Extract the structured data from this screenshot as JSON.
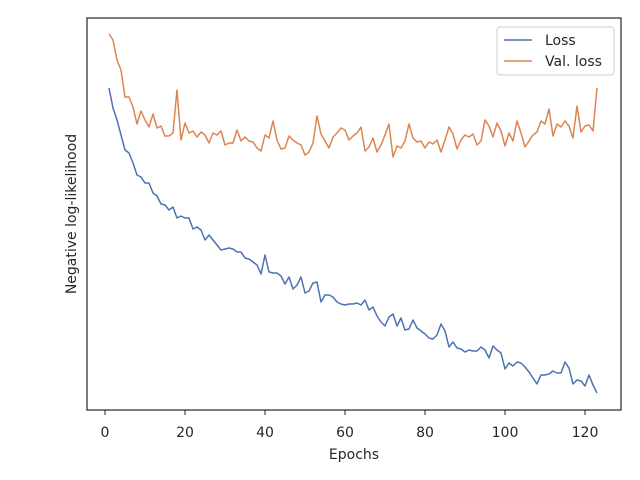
{
  "chart_data": {
    "type": "line",
    "xlabel": "Epochs",
    "ylabel": "Negative log-likelihood",
    "x": [
      1,
      2,
      3,
      4,
      5,
      6,
      7,
      8,
      9,
      10,
      11,
      12,
      13,
      14,
      15,
      16,
      17,
      18,
      19,
      20,
      21,
      22,
      23,
      24,
      25,
      26,
      27,
      28,
      29,
      30,
      31,
      32,
      33,
      34,
      35,
      36,
      37,
      38,
      39,
      40,
      41,
      42,
      43,
      44,
      45,
      46,
      47,
      48,
      49,
      50,
      51,
      52,
      53,
      54,
      55,
      56,
      57,
      58,
      59,
      60,
      61,
      62,
      63,
      64,
      65,
      66,
      67,
      68,
      69,
      70,
      71,
      72,
      73,
      74,
      75,
      76,
      77,
      78,
      79,
      80,
      81,
      82,
      83,
      84,
      85,
      86,
      87,
      88,
      89,
      90,
      91,
      92,
      93,
      94,
      95,
      96,
      97,
      98,
      99,
      100,
      101,
      102,
      103,
      104,
      105,
      106,
      107,
      108,
      109,
      110,
      111,
      112,
      113,
      114,
      115,
      116,
      117,
      118,
      119,
      120,
      121,
      122,
      123
    ],
    "series": [
      {
        "name": "Loss",
        "color": "#4c72b0",
        "values": [
          322,
          302,
          290,
          275,
          260,
          257,
          247,
          235,
          233,
          227,
          227,
          217,
          214,
          206,
          205,
          200,
          203,
          192,
          194,
          192,
          192,
          181,
          183,
          180,
          170,
          175,
          170,
          165,
          160,
          161,
          162,
          161,
          158,
          158,
          152,
          151,
          148,
          145,
          136,
          155,
          138,
          137,
          137,
          134,
          126,
          133,
          121,
          125,
          133,
          117,
          119,
          127,
          128,
          108,
          115,
          115,
          113,
          108,
          106,
          105,
          106,
          106,
          107,
          105,
          110,
          100,
          103,
          94,
          88,
          84,
          93,
          96,
          84,
          92,
          80,
          81,
          90,
          82,
          79,
          76,
          72,
          71,
          75,
          86,
          79,
          63,
          68,
          62,
          61,
          58,
          60,
          59,
          59,
          63,
          60,
          52,
          64,
          60,
          57,
          41,
          47,
          44,
          48,
          47,
          43,
          38,
          32,
          26,
          35,
          35,
          36,
          39,
          37,
          37,
          48,
          42,
          26,
          30,
          29,
          24,
          35,
          25,
          17
        ]
      },
      {
        "name": "Val. loss",
        "color": "#dd8452",
        "values": [
          376,
          370,
          350,
          340,
          313,
          313,
          303,
          286,
          299,
          290,
          283,
          296,
          282,
          284,
          274,
          274,
          277,
          320,
          270,
          287,
          277,
          279,
          273,
          278,
          275,
          267,
          277,
          275,
          279,
          265,
          267,
          267,
          280,
          269,
          273,
          269,
          268,
          262,
          259,
          275,
          272,
          289,
          270,
          261,
          262,
          274,
          270,
          267,
          265,
          255,
          258,
          267,
          294,
          276,
          269,
          262,
          273,
          277,
          282,
          280,
          270,
          274,
          277,
          283,
          259,
          263,
          272,
          258,
          265,
          275,
          286,
          253,
          264,
          262,
          269,
          286,
          272,
          268,
          269,
          262,
          268,
          266,
          270,
          258,
          270,
          283,
          276,
          261,
          270,
          275,
          273,
          276,
          265,
          269,
          290,
          284,
          273,
          287,
          279,
          264,
          277,
          269,
          289,
          277,
          263,
          269,
          275,
          278,
          289,
          286,
          301,
          274,
          286,
          283,
          289,
          284,
          272,
          304,
          278,
          284,
          285,
          279,
          322
        ]
      }
    ],
    "xlim": [
      -4.5,
      129
    ],
    "xticks": [
      0,
      20,
      40,
      60,
      80,
      100,
      120
    ],
    "ylim": [
      0,
      392
    ],
    "grid": false,
    "legend": "upper right"
  }
}
